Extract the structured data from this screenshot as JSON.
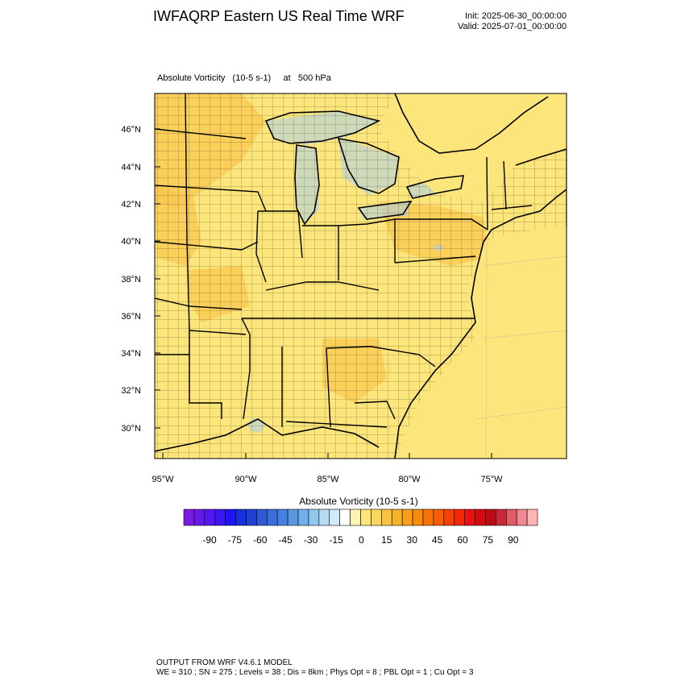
{
  "header": {
    "title": "IWFAQRP Eastern US Real Time WRF",
    "init": "Init: 2025-06-30_00:00:00",
    "valid": "Valid: 2025-07-01_00:00:00"
  },
  "field_label": "Absolute Vorticity   (10-5 s-1)     at   500 hPa",
  "map": {
    "lat_ticks": [
      "46°N",
      "44°N",
      "42°N",
      "40°N",
      "38°N",
      "36°N",
      "34°N",
      "32°N",
      "30°N"
    ],
    "lon_ticks": [
      "95°W",
      "90°W",
      "85°W",
      "80°W",
      "75°W"
    ],
    "colors": {
      "background_fill": "#FCE57A",
      "higher_values": "#F9C750",
      "lower_values": "#A8D0EC",
      "boundary_line": "#000000"
    }
  },
  "colorbar": {
    "title": "Absolute Vorticity  (10-5 s-1)",
    "tick_labels": [
      "-90",
      "-75",
      "-60",
      "-45",
      "-30",
      "-15",
      "0",
      "15",
      "30",
      "45",
      "60",
      "75",
      "90"
    ],
    "colors": [
      "#7A1AE0",
      "#6618E8",
      "#5418F0",
      "#3C16F6",
      "#1E14F6",
      "#1630E0",
      "#2040D4",
      "#2E58D4",
      "#3A6CDA",
      "#4680E0",
      "#5A98E6",
      "#72B0EC",
      "#92C8F0",
      "#B4DAF4",
      "#D2EAF8",
      "#FFFFFF",
      "#FEF6B0",
      "#FCE67A",
      "#FAD65A",
      "#F8C440",
      "#F8B228",
      "#F89E18",
      "#F88A0C",
      "#F87406",
      "#F85C06",
      "#F44206",
      "#F22806",
      "#EA1210",
      "#D40C10",
      "#BE0A14",
      "#C82A3A",
      "#E25A66",
      "#F18891",
      "#FDB4B4"
    ]
  },
  "footer": {
    "line1": "OUTPUT FROM WRF V4.6.1 MODEL",
    "line2": "WE = 310 ; SN = 275 ; Levels = 38 ; Dis = 8km ; Phys Opt = 8 ; PBL Opt = 1 ; Cu Opt = 3"
  }
}
